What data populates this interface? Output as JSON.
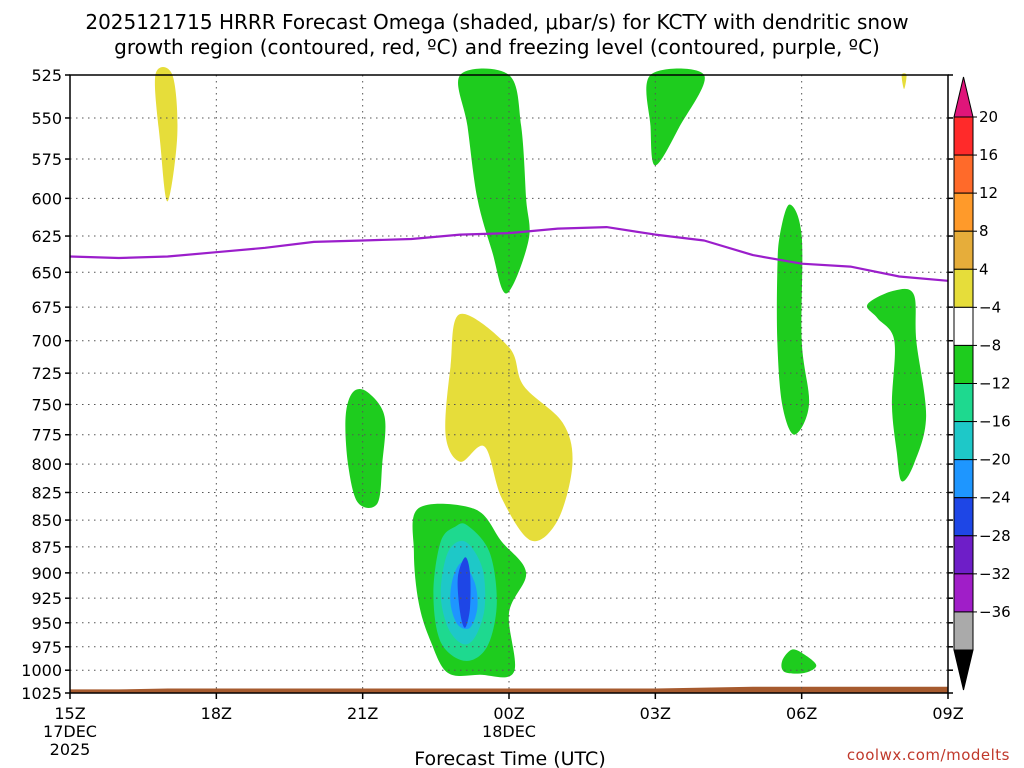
{
  "chart_data": {
    "type": "contour",
    "title_line1": "2025121715 HRRR Forecast Omega (shaded, μbar/s) for KCTY with dendritic snow",
    "title_line2": "growth region (contoured, red, ºC) and freezing level (contoured, purple, ºC)",
    "xlabel": "Forecast Time (UTC)",
    "credit": "coolwx.com/modelts",
    "x_range_hours": [
      0,
      18
    ],
    "y_range_mb": [
      525,
      1025
    ],
    "y_ticks": [
      "525",
      "550",
      "575",
      "600",
      "625",
      "650",
      "675",
      "700",
      "725",
      "750",
      "775",
      "800",
      "825",
      "850",
      "875",
      "900",
      "925",
      "950",
      "975",
      "1000",
      "1025"
    ],
    "x_ticks": [
      {
        "hour": 0,
        "label": "15Z",
        "sub1": "17DEC",
        "sub2": "2025"
      },
      {
        "hour": 3,
        "label": "18Z",
        "sub1": "",
        "sub2": ""
      },
      {
        "hour": 6,
        "label": "21Z",
        "sub1": "",
        "sub2": ""
      },
      {
        "hour": 9,
        "label": "00Z",
        "sub1": "18DEC",
        "sub2": ""
      },
      {
        "hour": 12,
        "label": "03Z",
        "sub1": "",
        "sub2": ""
      },
      {
        "hour": 15,
        "label": "06Z",
        "sub1": "",
        "sub2": ""
      },
      {
        "hour": 18,
        "label": "09Z",
        "sub1": "",
        "sub2": ""
      }
    ],
    "colorbar": {
      "labels": [
        "20",
        "16",
        "12",
        "8",
        "4",
        "−4",
        "−8",
        "−12",
        "−16",
        "−20",
        "−24",
        "−28",
        "−32",
        "−36"
      ],
      "colors": [
        "#ff2a2a",
        "#ff6a2a",
        "#ff9a2a",
        "#e6ad3a",
        "#e6dd3a",
        "#ffffff",
        "#1ecc1e",
        "#1ed98f",
        "#1ec8c8",
        "#1e96ff",
        "#1e46e6",
        "#6e1ec8",
        "#a01ec8",
        "#aaaaaa"
      ],
      "top_arrow_color": "#e0157a",
      "bottom_arrow_color": "#000000"
    },
    "freezing_level": {
      "color": "#9b1ecb",
      "hours": [
        0,
        1,
        2,
        3,
        4,
        5,
        6,
        7,
        8,
        9,
        10,
        11,
        12,
        13,
        14,
        15,
        16,
        17,
        18
      ],
      "pressure": [
        639,
        640,
        639,
        636,
        633,
        629,
        628,
        627,
        624,
        623,
        620,
        619,
        624,
        628,
        638,
        644,
        646,
        653,
        656
      ]
    },
    "omega_regions": [
      {
        "category": "4",
        "color": "#e6dd3a",
        "points": [
          [
            1.75,
            525
          ],
          [
            2.1,
            525
          ],
          [
            2.2,
            560
          ],
          [
            2.0,
            602
          ],
          [
            1.85,
            565
          ]
        ]
      },
      {
        "category": "4",
        "color": "#e6dd3a",
        "points": [
          [
            17.05,
            525
          ],
          [
            17.15,
            525
          ],
          [
            17.1,
            533
          ]
        ]
      },
      {
        "category": "4",
        "color": "#e6dd3a",
        "points": [
          [
            8.0,
            680
          ],
          [
            9.0,
            705
          ],
          [
            9.3,
            735
          ],
          [
            10.1,
            765
          ],
          [
            10.3,
            800
          ],
          [
            10.0,
            850
          ],
          [
            9.45,
            869
          ],
          [
            8.85,
            830
          ],
          [
            8.5,
            785
          ],
          [
            8.0,
            798
          ],
          [
            7.7,
            775
          ],
          [
            7.8,
            720
          ]
        ]
      },
      {
        "category": "-4",
        "color": "#1ecc1e",
        "points": [
          [
            8.0,
            525
          ],
          [
            9.0,
            525
          ],
          [
            9.25,
            555
          ],
          [
            9.35,
            600
          ],
          [
            9.4,
            628
          ],
          [
            8.95,
            665
          ],
          [
            8.65,
            635
          ],
          [
            8.35,
            600
          ],
          [
            8.15,
            555
          ]
        ]
      },
      {
        "category": "-4",
        "color": "#1ecc1e",
        "points": [
          [
            11.9,
            525
          ],
          [
            13.0,
            525
          ],
          [
            12.5,
            555
          ],
          [
            12.0,
            579
          ],
          [
            11.9,
            555
          ]
        ]
      },
      {
        "category": "-4",
        "color": "#1ecc1e",
        "points": [
          [
            14.75,
            604
          ],
          [
            15.0,
            625
          ],
          [
            15.0,
            700
          ],
          [
            15.15,
            750
          ],
          [
            14.85,
            775
          ],
          [
            14.6,
            750
          ],
          [
            14.5,
            700
          ],
          [
            14.5,
            650
          ],
          [
            14.55,
            625
          ]
        ]
      },
      {
        "category": "-4",
        "color": "#1ecc1e",
        "points": [
          [
            16.9,
            663
          ],
          [
            17.3,
            666
          ],
          [
            17.35,
            700
          ],
          [
            17.55,
            760
          ],
          [
            17.3,
            800
          ],
          [
            17.05,
            815
          ],
          [
            16.95,
            790
          ],
          [
            16.85,
            750
          ],
          [
            16.9,
            700
          ],
          [
            16.55,
            683
          ],
          [
            16.35,
            673
          ]
        ]
      },
      {
        "category": "-4",
        "color": "#1ecc1e",
        "points": [
          [
            5.8,
            740
          ],
          [
            6.1,
            740
          ],
          [
            6.45,
            760
          ],
          [
            6.4,
            800
          ],
          [
            6.3,
            835
          ],
          [
            5.9,
            834
          ],
          [
            5.7,
            800
          ],
          [
            5.65,
            760
          ]
        ]
      },
      {
        "category": "-4",
        "color": "#1ecc1e",
        "points": [
          [
            7.15,
            839
          ],
          [
            8.3,
            840
          ],
          [
            8.85,
            870
          ],
          [
            9.35,
            900
          ],
          [
            9.0,
            940
          ],
          [
            9.1,
            1002
          ],
          [
            8.4,
            1005
          ],
          [
            7.75,
            1003
          ],
          [
            7.4,
            970
          ],
          [
            7.15,
            930
          ],
          [
            7.05,
            880
          ]
        ]
      },
      {
        "category": "-4",
        "color": "#1ecc1e",
        "points": [
          [
            14.8,
            978
          ],
          [
            15.05,
            983
          ],
          [
            15.3,
            995
          ],
          [
            15.05,
            1003
          ],
          [
            14.65,
            1002
          ],
          [
            14.6,
            990
          ]
        ]
      },
      {
        "category": "-8",
        "color": "#1ed98f",
        "points": [
          [
            8.15,
            855
          ],
          [
            8.6,
            880
          ],
          [
            8.75,
            930
          ],
          [
            8.55,
            975
          ],
          [
            8.1,
            990
          ],
          [
            7.6,
            970
          ],
          [
            7.45,
            920
          ],
          [
            7.6,
            870
          ],
          [
            7.9,
            856
          ]
        ]
      },
      {
        "category": "-12",
        "color": "#1ec8c8",
        "points": [
          [
            8.1,
            870
          ],
          [
            8.45,
            895
          ],
          [
            8.5,
            935
          ],
          [
            8.3,
            965
          ],
          [
            8.05,
            972
          ],
          [
            7.75,
            955
          ],
          [
            7.6,
            920
          ],
          [
            7.75,
            880
          ]
        ]
      },
      {
        "category": "-16",
        "color": "#1e96ff",
        "points": [
          [
            8.05,
            890
          ],
          [
            8.3,
            910
          ],
          [
            8.35,
            935
          ],
          [
            8.2,
            955
          ],
          [
            7.95,
            952
          ],
          [
            7.8,
            930
          ],
          [
            7.85,
            905
          ]
        ]
      },
      {
        "category": "-20",
        "color": "#1e46e6",
        "points": [
          [
            8.1,
            885
          ],
          [
            8.2,
            900
          ],
          [
            8.2,
            935
          ],
          [
            8.1,
            955
          ],
          [
            8.0,
            940
          ],
          [
            7.95,
            905
          ]
        ]
      }
    ],
    "terrain": {
      "color": "#a65a2e",
      "bottom_mb": 1025,
      "surface_mb": [
        1021,
        1021,
        1020,
        1020,
        1020,
        1020,
        1020,
        1020,
        1020,
        1020,
        1020,
        1020,
        1020,
        1019,
        1018,
        1018,
        1018,
        1018,
        1018
      ]
    }
  }
}
